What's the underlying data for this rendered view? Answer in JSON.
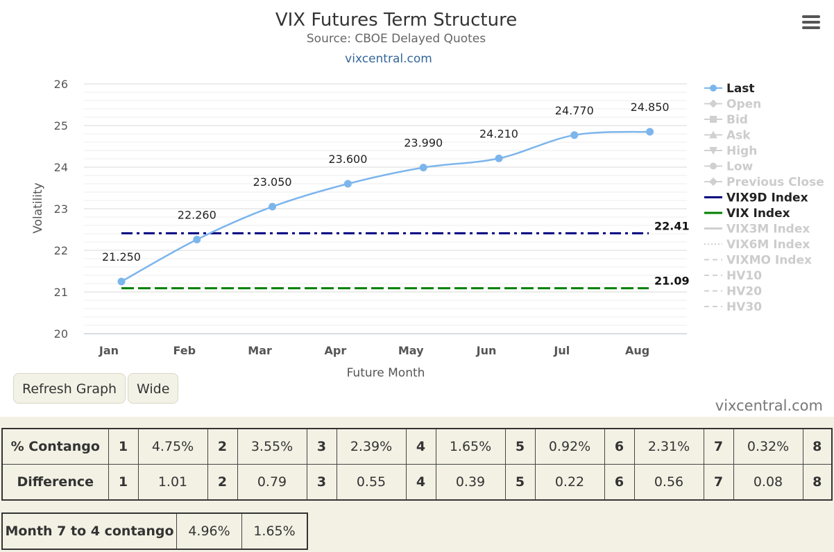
{
  "chart_data": {
    "type": "line",
    "title": "VIX Futures Term Structure",
    "subtitle": "Source: CBOE Delayed Quotes",
    "credit": "vixcentral.com",
    "xlabel": "Future Month",
    "ylabel": "Volatility",
    "categories": [
      "Jan",
      "Feb",
      "Mar",
      "Apr",
      "May",
      "Jun",
      "Jul",
      "Aug"
    ],
    "ylim": [
      20,
      26
    ],
    "yticks": [
      "20",
      "21",
      "22",
      "23",
      "24",
      "25",
      "26"
    ],
    "grid": true,
    "legend_position": "right",
    "series": [
      {
        "name": "Last",
        "values": [
          21.25,
          22.26,
          23.05,
          23.6,
          23.99,
          24.21,
          24.77,
          24.85
        ],
        "labels": [
          "21.250",
          "22.260",
          "23.050",
          "23.600",
          "23.990",
          "24.210",
          "24.770",
          "24.850"
        ],
        "color": "#7cb5ec"
      },
      {
        "name": "VIX9D Index",
        "value": 22.41,
        "label": "22.41",
        "color": "#00007f",
        "dash": "dash-dot"
      },
      {
        "name": "VIX Index",
        "value": 21.09,
        "label": "21.09",
        "color": "#007f00",
        "dash": "dash"
      }
    ],
    "legend": [
      {
        "name": "Last",
        "active": true,
        "marker": "circle",
        "color": "#7cb5ec"
      },
      {
        "name": "Open",
        "active": false,
        "marker": "diamond"
      },
      {
        "name": "Bid",
        "active": false,
        "marker": "square"
      },
      {
        "name": "Ask",
        "active": false,
        "marker": "triangle"
      },
      {
        "name": "High",
        "active": false,
        "marker": "triangle-down"
      },
      {
        "name": "Low",
        "active": false,
        "marker": "circle"
      },
      {
        "name": "Previous Close",
        "active": false,
        "marker": "diamond"
      },
      {
        "name": "VIX9D Index",
        "active": true,
        "marker": "line",
        "color": "#00007f"
      },
      {
        "name": "VIX Index",
        "active": true,
        "marker": "line",
        "color": "#007f00"
      },
      {
        "name": "VIX3M Index",
        "active": false,
        "marker": "line"
      },
      {
        "name": "VIX6M Index",
        "active": false,
        "marker": "dotted"
      },
      {
        "name": "VIXMO Index",
        "active": false,
        "marker": "dashed"
      },
      {
        "name": "HV10",
        "active": false,
        "marker": "dashed"
      },
      {
        "name": "HV20",
        "active": false,
        "marker": "dashed"
      },
      {
        "name": "HV30",
        "active": false,
        "marker": "dashed"
      }
    ]
  },
  "buttons": {
    "refresh": "Refresh Graph",
    "wide": "Wide"
  },
  "watermark": "vixcentral.com",
  "contango_table": {
    "rows": [
      {
        "label": "% Contango",
        "cells": [
          [
            "1",
            "4.75%"
          ],
          [
            "2",
            "3.55%"
          ],
          [
            "3",
            "2.39%"
          ],
          [
            "4",
            "1.65%"
          ],
          [
            "5",
            "0.92%"
          ],
          [
            "6",
            "2.31%"
          ],
          [
            "7",
            "0.32%"
          ]
        ],
        "last": "8"
      },
      {
        "label": "Difference",
        "cells": [
          [
            "1",
            "1.01"
          ],
          [
            "2",
            "0.79"
          ],
          [
            "3",
            "0.55"
          ],
          [
            "4",
            "0.39"
          ],
          [
            "5",
            "0.22"
          ],
          [
            "6",
            "0.56"
          ],
          [
            "7",
            "0.08"
          ]
        ],
        "last": "8"
      }
    ]
  },
  "month_table": {
    "label": "Month 7 to 4 contango",
    "v1": "4.96%",
    "v2": "1.65%"
  }
}
